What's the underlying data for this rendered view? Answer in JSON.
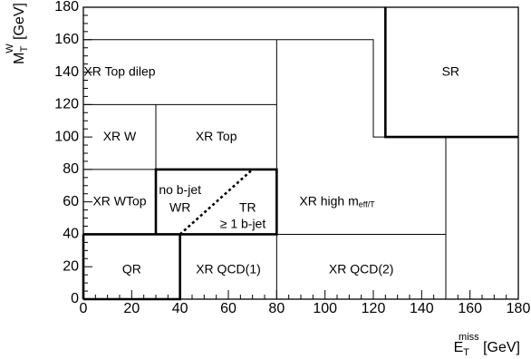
{
  "chart_data": {
    "type": "region-map",
    "xlabel": "E",
    "xlabel_sup": "miss",
    "xlabel_sub": "T",
    "xlabel_unit": " [GeV]",
    "ylabel": "M",
    "ylabel_sup": "W",
    "ylabel_sub": "T",
    "ylabel_unit": " [GeV]",
    "xlim": [
      0,
      180
    ],
    "ylim": [
      0,
      180
    ],
    "xticks": [
      "0",
      "20",
      "40",
      "60",
      "80",
      "100",
      "120",
      "140",
      "160",
      "180"
    ],
    "yticks": [
      "0",
      "20",
      "40",
      "60",
      "80",
      "100",
      "120",
      "140",
      "160",
      "180"
    ],
    "regions": [
      {
        "label": "XR Top dilep",
        "x": 15,
        "y": 140
      },
      {
        "label": "XR W",
        "x": 15,
        "y": 100
      },
      {
        "label": "XR Top",
        "x": 55,
        "y": 100
      },
      {
        "label": "XR WTop",
        "x": 15,
        "y": 60
      },
      {
        "label": "QR",
        "x": 20,
        "y": 18
      },
      {
        "label": "XR QCD(1)",
        "x": 60,
        "y": 18
      },
      {
        "label": "XR QCD(2)",
        "x": 115,
        "y": 18
      },
      {
        "label": "SR",
        "x": 152,
        "y": 140
      }
    ],
    "xr_high": {
      "label": "XR high m",
      "sub": "eff/T",
      "x": 105,
      "y": 60
    },
    "wr": {
      "line1": "no b-jet",
      "line2": "WR",
      "x1": 40,
      "y1": 67,
      "x2": 40,
      "y2": 56
    },
    "tr": {
      "line1": "TR",
      "line2": "≥ 1 b-jet",
      "x1": 68,
      "y1": 56,
      "x2": 66,
      "y2": 46
    },
    "thin_lines": [
      [
        [
          0,
          160
        ],
        [
          120,
          160
        ],
        [
          120,
          100
        ],
        [
          125,
          100
        ]
      ],
      [
        [
          0,
          120
        ],
        [
          80,
          120
        ]
      ],
      [
        [
          30,
          120
        ],
        [
          30,
          80
        ]
      ],
      [
        [
          0,
          80
        ],
        [
          30,
          80
        ]
      ],
      [
        [
          80,
          160
        ],
        [
          80,
          0
        ]
      ],
      [
        [
          80,
          40
        ],
        [
          150,
          40
        ]
      ],
      [
        [
          150,
          100
        ],
        [
          150,
          0
        ]
      ]
    ],
    "thick_lines": [
      [
        [
          30,
          40
        ],
        [
          30,
          80
        ],
        [
          80,
          80
        ],
        [
          80,
          40
        ],
        [
          30,
          40
        ]
      ],
      [
        [
          0,
          40
        ],
        [
          30,
          40
        ]
      ],
      [
        [
          0,
          0
        ],
        [
          0,
          40
        ]
      ],
      [
        [
          0,
          0
        ],
        [
          40,
          0
        ],
        [
          40,
          40
        ]
      ],
      [
        [
          125,
          180
        ],
        [
          125,
          100
        ],
        [
          180,
          100
        ]
      ]
    ],
    "dashed_lines": [
      [
        [
          40,
          40
        ],
        [
          70,
          80
        ]
      ]
    ]
  }
}
